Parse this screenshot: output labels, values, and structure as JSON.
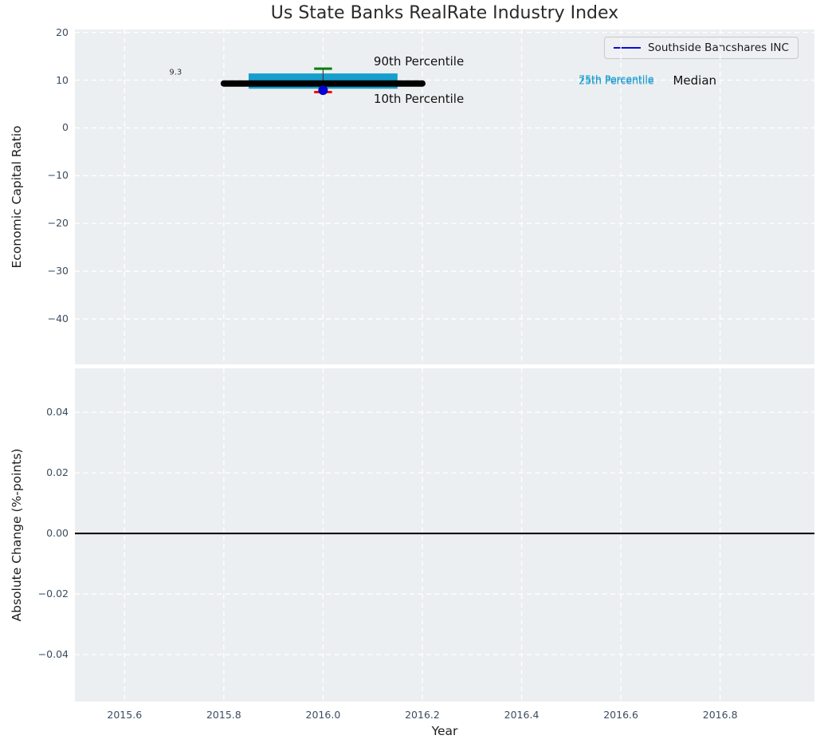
{
  "title": "Us State Banks RealRate Industry Index",
  "xlabel": "Year",
  "legend": {
    "label": "Southside Bancshares INC",
    "line_color": "#0b0bda"
  },
  "chart_data": [
    {
      "type": "box-percentile",
      "title": "Us State Banks RealRate Industry Index",
      "ylabel": "Economic Capital Ratio",
      "xlabel": "",
      "xlim": [
        2015.5,
        2016.99
      ],
      "ylim": [
        -49.5,
        20.6
      ],
      "grid": true,
      "legend_position": "upper right",
      "xticks": [
        {
          "v": 2015.6,
          "label": "2015.6"
        },
        {
          "v": 2015.8,
          "label": "2015.8"
        },
        {
          "v": 2016.0,
          "label": "2016.0"
        },
        {
          "v": 2016.2,
          "label": "2016.2"
        },
        {
          "v": 2016.4,
          "label": "2016.4"
        },
        {
          "v": 2016.6,
          "label": "2016.6"
        },
        {
          "v": 2016.8,
          "label": "2016.8"
        }
      ],
      "yticks": [
        {
          "v": 20,
          "label": "20"
        },
        {
          "v": 10,
          "label": "10"
        },
        {
          "v": 0,
          "label": "0"
        },
        {
          "v": -10,
          "label": "−10"
        },
        {
          "v": -20,
          "label": "−20"
        },
        {
          "v": -30,
          "label": "−30"
        },
        {
          "v": -40,
          "label": "−40"
        }
      ],
      "series": {
        "median_line": {
          "x1": 2015.8,
          "x2": 2016.2,
          "y": 9.3,
          "color": "#000000",
          "value_label": "9.3"
        },
        "iqr_box": {
          "x1": 2015.85,
          "x2": 2016.15,
          "y_low": 8.2,
          "y_high": 11.4,
          "color": "#179ecd"
        },
        "p90_tick": {
          "x": 2016.0,
          "y": 12.4,
          "half_width": 0.018,
          "color": "#007d0c"
        },
        "p10_tick": {
          "x": 2016.0,
          "y": 7.5,
          "half_width": 0.018,
          "color": "#ff0000"
        },
        "company_point": {
          "name": "Southside Bancshares INC",
          "x": 2016.0,
          "y": 7.9,
          "color": "#0000dd",
          "edge_color": "#0008a8"
        }
      },
      "annotations": [
        {
          "id": "median-value",
          "text": "9.3",
          "x": 2015.69,
          "y": 11.6,
          "size": 10,
          "color": "#333333"
        },
        {
          "id": "p90-label",
          "text": "90th Percentile",
          "x": 2016.102,
          "y": 13.9,
          "size": 15,
          "color": "#111111"
        },
        {
          "id": "p10-label",
          "text": "10th Percentile",
          "x": 2016.102,
          "y": 6.0,
          "size": 15,
          "color": "#111111"
        },
        {
          "id": "p75-label",
          "text": "75th Percentile",
          "x": 2016.515,
          "y": 10.3,
          "size": 12.5,
          "color": "#1a9bce"
        },
        {
          "id": "p25-label",
          "text": "25th Percentile",
          "x": 2016.515,
          "y": 9.9,
          "size": 12.5,
          "color": "#1a9bce"
        },
        {
          "id": "median-label",
          "text": "Median",
          "x": 2016.705,
          "y": 9.9,
          "size": 15,
          "color": "#111111"
        }
      ]
    },
    {
      "type": "line",
      "ylabel": "Absolute Change (%-points)",
      "xlabel": "Year",
      "xlim": [
        2015.5,
        2016.99
      ],
      "ylim": [
        -0.0555,
        0.0545
      ],
      "grid": true,
      "xticks": [
        {
          "v": 2015.6,
          "label": "2015.6"
        },
        {
          "v": 2015.8,
          "label": "2015.8"
        },
        {
          "v": 2016.0,
          "label": "2016.0"
        },
        {
          "v": 2016.2,
          "label": "2016.2"
        },
        {
          "v": 2016.4,
          "label": "2016.4"
        },
        {
          "v": 2016.6,
          "label": "2016.6"
        },
        {
          "v": 2016.8,
          "label": "2016.8"
        }
      ],
      "yticks": [
        {
          "v": 0.04,
          "label": "0.04"
        },
        {
          "v": 0.02,
          "label": "0.02"
        },
        {
          "v": 0.0,
          "label": "0.00"
        },
        {
          "v": -0.02,
          "label": "−0.02"
        },
        {
          "v": -0.04,
          "label": "−0.04"
        }
      ],
      "zero_line": {
        "y": 0.0,
        "color": "#000000"
      }
    }
  ]
}
